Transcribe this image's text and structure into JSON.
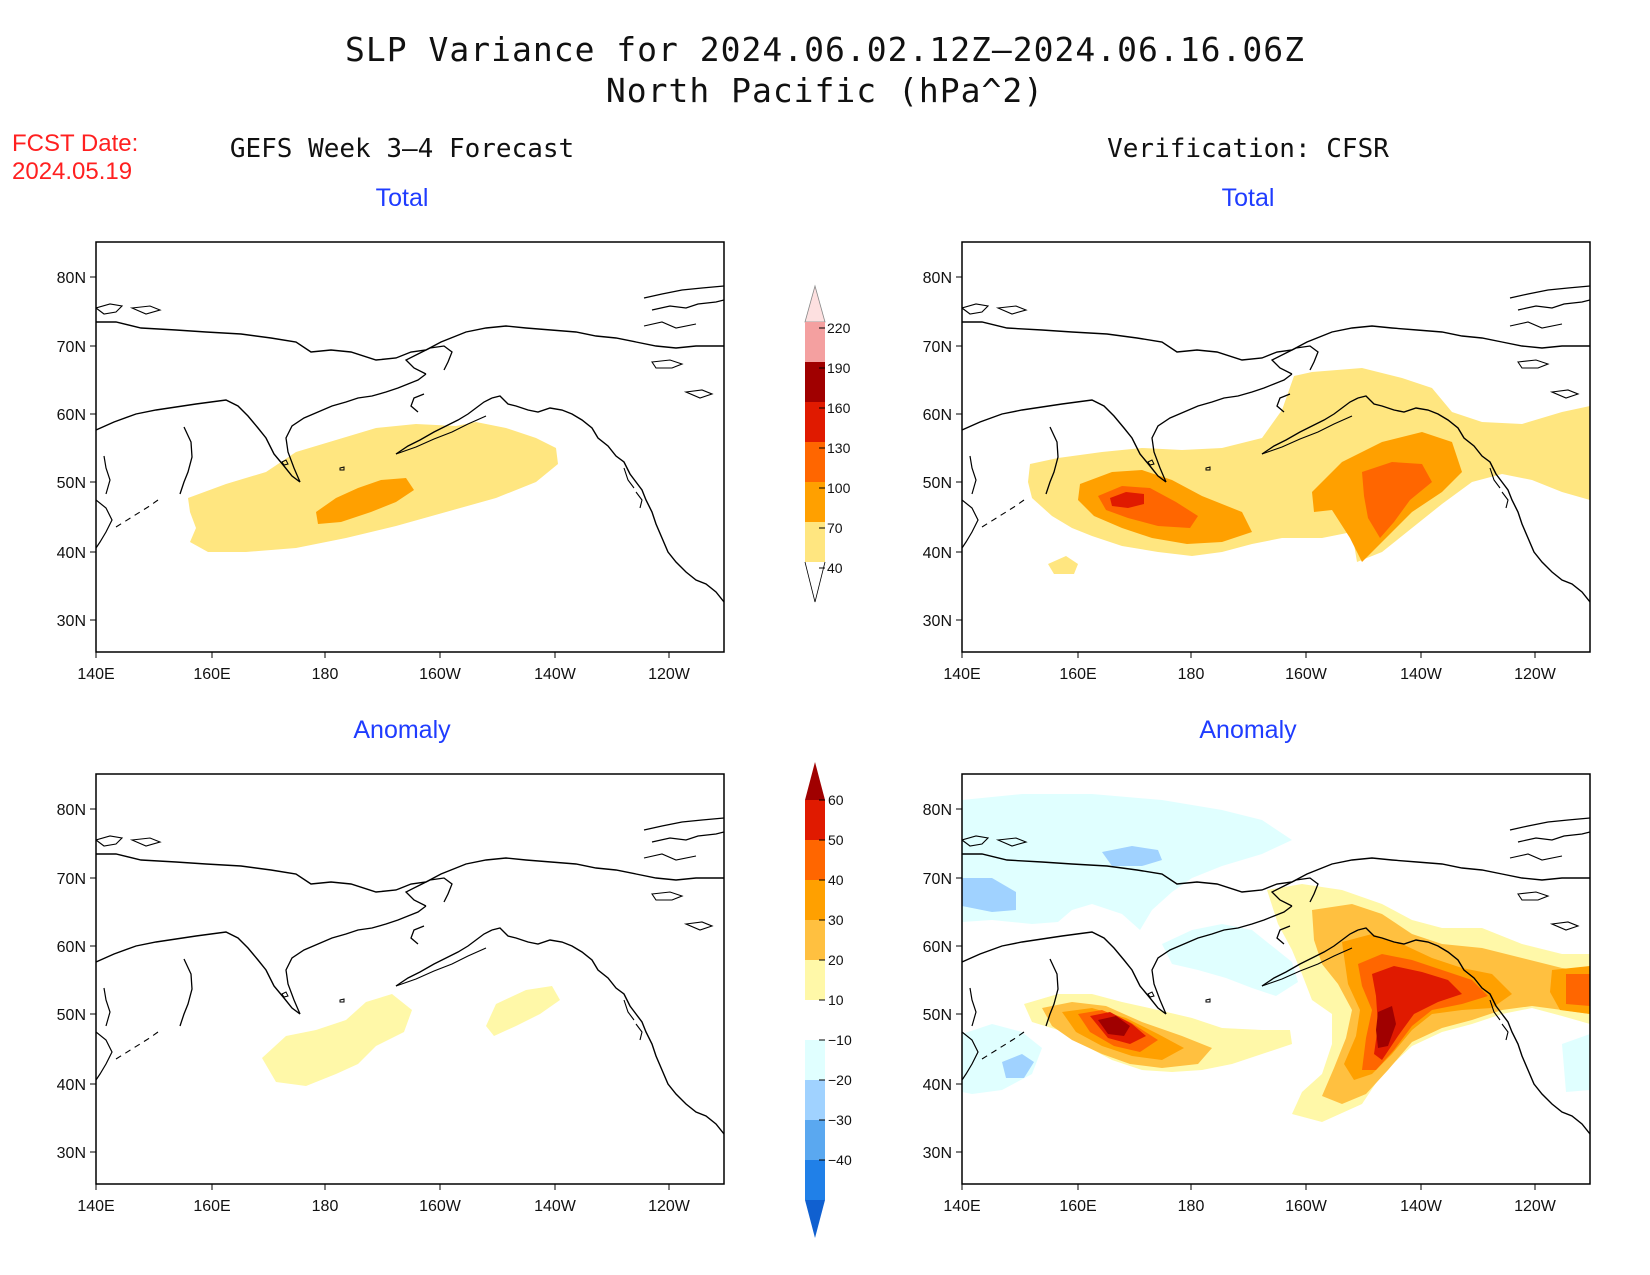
{
  "header": {
    "title_line1": "SLP Variance for 2024.06.02.12Z–2024.06.16.06Z",
    "title_line2": "North Pacific (hPa^2)"
  },
  "fcst": {
    "line1": "FCST Date:",
    "line2": "2024.05.19"
  },
  "columns": {
    "left": "GEFS Week 3–4 Forecast",
    "right": "Verification: CFSR"
  },
  "panels": {
    "top_left": "Total",
    "top_right": "Total",
    "bottom_left": "Anomaly",
    "bottom_right": "Anomaly"
  },
  "axes": {
    "lat_labels": [
      "80N",
      "70N",
      "60N",
      "50N",
      "40N",
      "30N"
    ],
    "lon_labels": [
      "140E",
      "160E",
      "180",
      "160W",
      "140W",
      "120W"
    ]
  },
  "colorbars": {
    "total": {
      "levels": [
        "220",
        "190",
        "160",
        "130",
        "100",
        "70",
        "40"
      ],
      "colors": [
        "#fde0e0",
        "#f4a0a0",
        "#a00000",
        "#e01a00",
        "#ff6600",
        "#ffa000",
        "#ffe680"
      ]
    },
    "anomaly": {
      "levels": [
        "60",
        "50",
        "40",
        "30",
        "20",
        "10",
        "−10",
        "−20",
        "−30",
        "−40"
      ],
      "colors": [
        "#a00000",
        "#e01a00",
        "#ff6600",
        "#ffa000",
        "#ffc040",
        "#fff8a8",
        "#ffffff",
        "#e0ffff",
        "#a0d2ff",
        "#5aa8f0",
        "#2080e8",
        "#1060d0"
      ]
    }
  },
  "fields": {
    "colors": {
      "total_40": "#ffe680",
      "total_70": "#ffa000",
      "total_100": "#ff6600",
      "total_130": "#e01a00",
      "anom_10": "#fff8a8",
      "anom_20": "#ffc040",
      "anom_30": "#ffa000",
      "anom_40": "#ff6600",
      "anom_50": "#e01a00",
      "anom_60": "#a00000",
      "anom_m10": "#e0ffff",
      "anom_m20": "#a0d2ff"
    }
  }
}
